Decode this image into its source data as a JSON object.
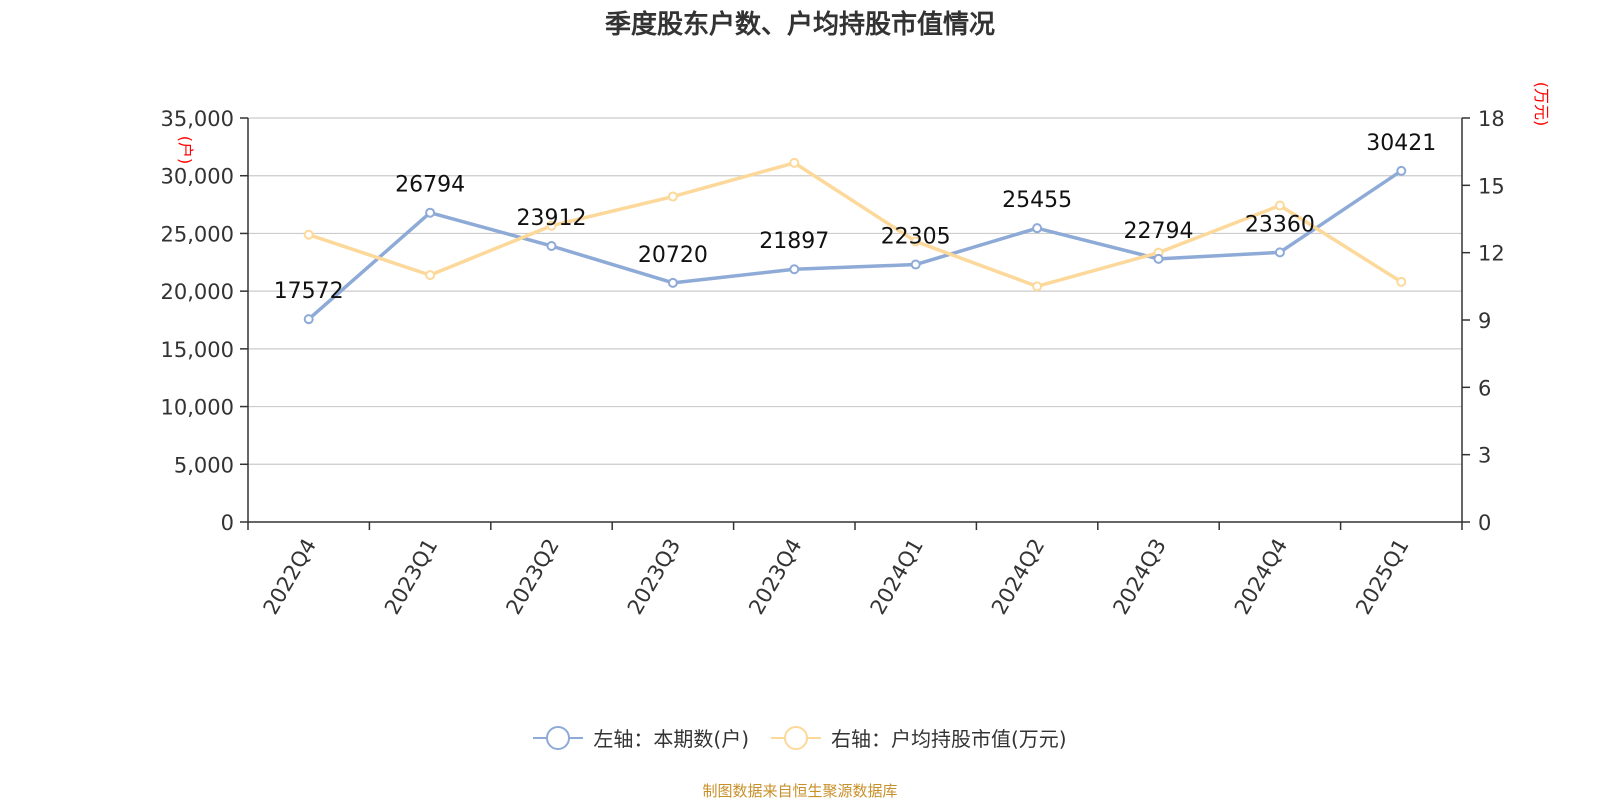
{
  "title": "季度股东户数、户均持股市值情况",
  "source": "制图数据来自恒生聚源数据库",
  "chart_data": {
    "type": "line",
    "categories": [
      "2022Q4",
      "2023Q1",
      "2023Q2",
      "2023Q3",
      "2023Q4",
      "2024Q1",
      "2024Q2",
      "2024Q3",
      "2024Q4",
      "2025Q1"
    ],
    "series": [
      {
        "name": "左轴：本期数(户)",
        "axis": "left",
        "color": "#8eaad6",
        "values": [
          17572,
          26794,
          23912,
          20720,
          21897,
          22305,
          25455,
          22794,
          23360,
          30421
        ],
        "data_labels": [
          "17572",
          "26794",
          "23912",
          "20720",
          "21897",
          "22305",
          "25455",
          "22794",
          "23360",
          "30421"
        ]
      },
      {
        "name": "右轴：户均持股市值(万元)",
        "axis": "right",
        "color": "#fcd99a",
        "values": [
          12.8,
          11.0,
          13.2,
          14.5,
          16.0,
          12.5,
          10.5,
          12.0,
          14.1,
          10.7
        ]
      }
    ],
    "y_left": {
      "label": "(户)",
      "min": 0,
      "max": 35000,
      "ticks": [
        0,
        5000,
        10000,
        15000,
        20000,
        25000,
        30000,
        35000
      ],
      "tick_labels": [
        "0",
        "5,000",
        "10,000",
        "15,000",
        "20,000",
        "25,000",
        "30,000",
        "35,000"
      ]
    },
    "y_right": {
      "label": "(万元)",
      "min": 0,
      "max": 18,
      "ticks": [
        0,
        3,
        6,
        9,
        12,
        15,
        18
      ],
      "tick_labels": [
        "0",
        "3",
        "6",
        "9",
        "12",
        "15",
        "18"
      ]
    },
    "grid": true,
    "legend_position": "bottom"
  },
  "colors": {
    "axis": "#333333",
    "grid": "#cccccc",
    "axis_label": "#ff0000",
    "source": "#c8902a"
  }
}
